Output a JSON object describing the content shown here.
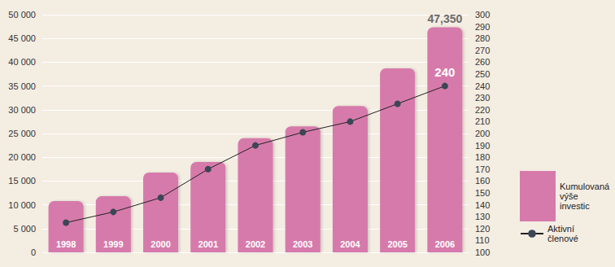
{
  "chart_data": {
    "type": "bar",
    "categories": [
      "1998",
      "1999",
      "2000",
      "2001",
      "2002",
      "2003",
      "2004",
      "2005",
      "2006"
    ],
    "series": [
      {
        "name": "Kumulovaná výše investic",
        "type": "bar",
        "color": "#d67aab",
        "values": [
          10800,
          11800,
          16800,
          19000,
          24000,
          26500,
          30800,
          38700,
          47350
        ],
        "value_labels": [
          null,
          null,
          null,
          null,
          null,
          null,
          null,
          null,
          "47,350"
        ]
      },
      {
        "name": "Aktivní členové",
        "type": "line",
        "axis": "y2",
        "color": "#3b4656",
        "marker": "circle",
        "line_style": "solid",
        "values": [
          125,
          134,
          146,
          170,
          190,
          201,
          210,
          225,
          240
        ],
        "value_labels": [
          null,
          null,
          null,
          null,
          null,
          null,
          null,
          null,
          "240"
        ]
      }
    ],
    "ylim": [
      0,
      50000
    ],
    "yticks": [
      0,
      {
        "value": 5000,
        "label": "5 000"
      },
      {
        "value": 10000,
        "label": "10 000"
      },
      {
        "value": 15000,
        "label": "15 000"
      },
      {
        "value": 20000,
        "label": "20 000"
      },
      {
        "value": 25000,
        "label": "25 000"
      },
      {
        "value": 30000,
        "label": "30 000"
      },
      {
        "value": 35000,
        "label": "35 000"
      },
      {
        "value": 40000,
        "label": "40 000"
      },
      {
        "value": 45000,
        "label": "45 000"
      },
      {
        "value": 50000,
        "label": "50 000"
      }
    ],
    "y2lim": [
      100,
      300
    ],
    "y2ticks": [
      100,
      110,
      120,
      130,
      140,
      150,
      160,
      170,
      180,
      190,
      200,
      210,
      220,
      230,
      240,
      250,
      260,
      270,
      280,
      290,
      300
    ],
    "grid": true,
    "legend": "right"
  }
}
